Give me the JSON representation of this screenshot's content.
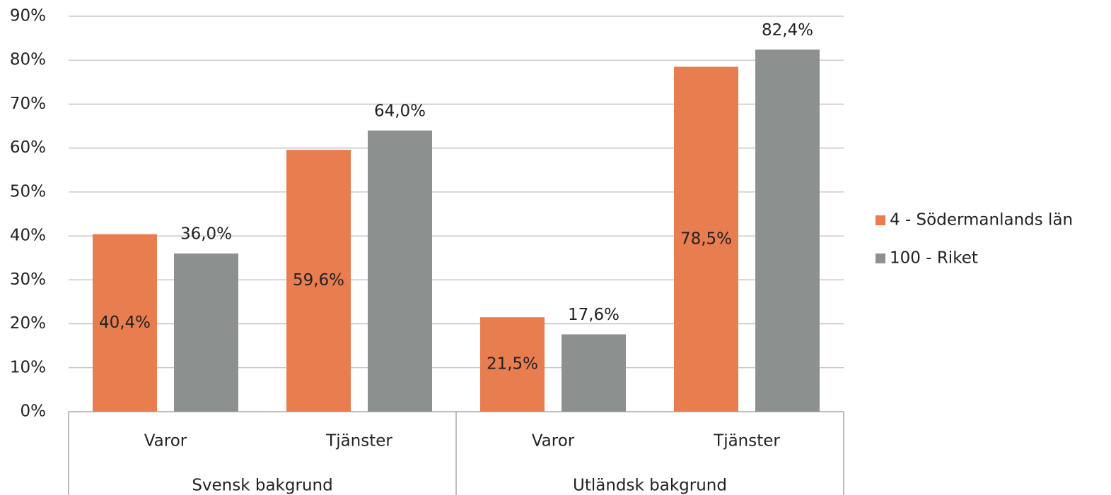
{
  "chart_data": {
    "type": "bar",
    "categories": [
      "Varor",
      "Tjänster",
      "Varor",
      "Tjänster"
    ],
    "groups": [
      "Svensk bakgrund",
      "Utländsk bakgrund"
    ],
    "series": [
      {
        "name": "4 - Södermanlands län",
        "color": "#e87d4f",
        "values": [
          40.4,
          59.6,
          21.5,
          78.5
        ],
        "value_labels": [
          "40,4%",
          "59,6%",
          "21,5%",
          "78,5%"
        ],
        "label_position": "center"
      },
      {
        "name": "100 - Riket",
        "color": "#8c918f",
        "values": [
          36.0,
          64.0,
          17.6,
          82.4
        ],
        "value_labels": [
          "36,0%",
          "64,0%",
          "17,6%",
          "82,4%"
        ],
        "label_position": "outside_end"
      }
    ],
    "ylim": [
      0,
      90
    ],
    "yticks": [
      {
        "value": 0,
        "label": "0%"
      },
      {
        "value": 10,
        "label": "10%"
      },
      {
        "value": 20,
        "label": "20%"
      },
      {
        "value": 30,
        "label": "30%"
      },
      {
        "value": 40,
        "label": "40%"
      },
      {
        "value": 50,
        "label": "50%"
      },
      {
        "value": 60,
        "label": "60%"
      },
      {
        "value": 70,
        "label": "70%"
      },
      {
        "value": 80,
        "label": "80%"
      },
      {
        "value": 90,
        "label": "90%"
      }
    ],
    "grid": true,
    "legend": "right"
  }
}
